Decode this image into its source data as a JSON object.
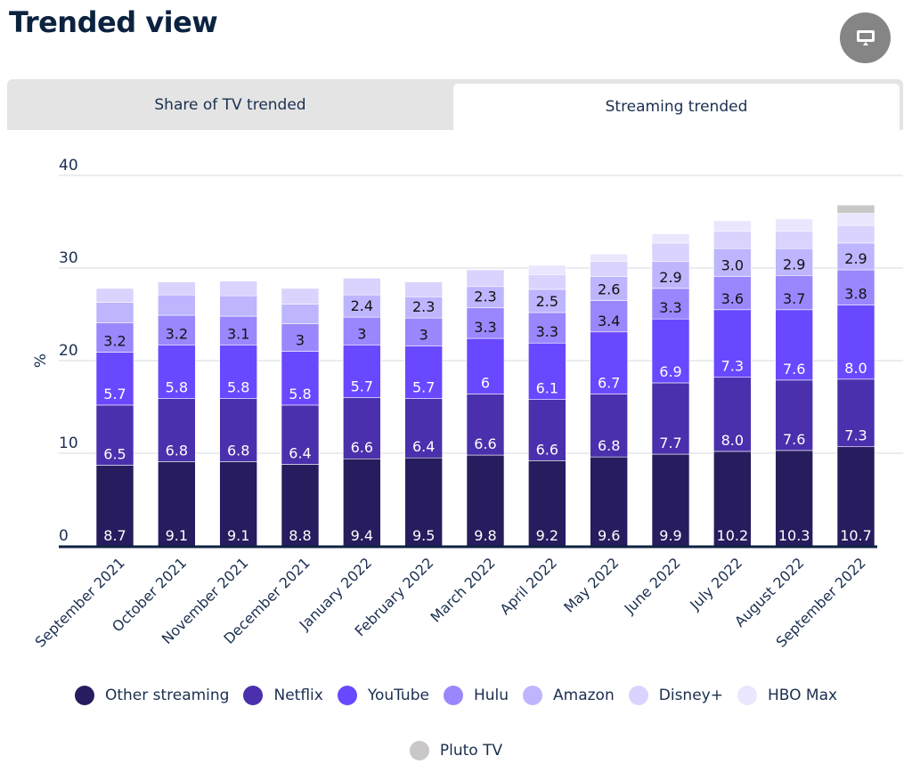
{
  "header": {
    "title": "Trended view",
    "tv_button_icon": "monitor-icon"
  },
  "tabs": [
    {
      "label": "Share of TV trended",
      "active": false
    },
    {
      "label": "Streaming trended",
      "active": true
    }
  ],
  "chart_data": {
    "type": "bar",
    "stacked": true,
    "title": "",
    "xlabel": "",
    "ylabel": "%",
    "ylim": [
      0,
      40
    ],
    "yticks": [
      0,
      10,
      20,
      30,
      40
    ],
    "grid": true,
    "legend_position": "bottom",
    "categories": [
      "September 2021",
      "October 2021",
      "November 2021",
      "December 2021",
      "January 2022",
      "February 2022",
      "March 2022",
      "April 2022",
      "May 2022",
      "June 2022",
      "July 2022",
      "August 2022",
      "September 2022"
    ],
    "series": [
      {
        "name": "Other streaming",
        "color": "#271c5e",
        "label_color": "#ffffff",
        "values": [
          8.7,
          9.1,
          9.1,
          8.8,
          9.4,
          9.5,
          9.8,
          9.2,
          9.6,
          9.9,
          10.2,
          10.3,
          10.7
        ],
        "labels": [
          "8.7",
          "9.1",
          "9.1",
          "8.8",
          "9.4",
          "9.5",
          "9.8",
          "9.2",
          "9.6",
          "9.9",
          "10.2",
          "10.3",
          "10.7"
        ]
      },
      {
        "name": "Netflix",
        "color": "#4a30ac",
        "label_color": "#ffffff",
        "values": [
          6.5,
          6.8,
          6.8,
          6.4,
          6.6,
          6.4,
          6.6,
          6.6,
          6.8,
          7.7,
          8.0,
          7.6,
          7.3
        ],
        "labels": [
          "6.5",
          "6.8",
          "6.8",
          "6.4",
          "6.6",
          "6.4",
          "6.6",
          "6.6",
          "6.8",
          "7.7",
          "8.0",
          "7.6",
          "7.3"
        ]
      },
      {
        "name": "YouTube",
        "color": "#6a48ff",
        "label_color": "#ffffff",
        "values": [
          5.7,
          5.8,
          5.8,
          5.8,
          5.7,
          5.7,
          6.0,
          6.1,
          6.7,
          6.9,
          7.3,
          7.6,
          8.0
        ],
        "labels": [
          "5.7",
          "5.8",
          "5.8",
          "5.8",
          "5.7",
          "5.7",
          "6",
          "6.1",
          "6.7",
          "6.9",
          "7.3",
          "7.6",
          "8.0"
        ]
      },
      {
        "name": "Hulu",
        "color": "#9a87fd",
        "label_color": "#111111",
        "values": [
          3.2,
          3.2,
          3.1,
          3.0,
          3.0,
          3.0,
          3.3,
          3.3,
          3.4,
          3.3,
          3.6,
          3.7,
          3.8
        ],
        "labels": [
          "3.2",
          "3.2",
          "3.1",
          "3",
          "3",
          "3",
          "3.3",
          "3.3",
          "3.4",
          "3.3",
          "3.6",
          "3.7",
          "3.8"
        ]
      },
      {
        "name": "Amazon",
        "color": "#bdb5fe",
        "label_color": "#111111",
        "values": [
          2.2,
          2.2,
          2.2,
          2.1,
          2.4,
          2.3,
          2.3,
          2.5,
          2.6,
          2.9,
          3.0,
          2.9,
          2.9
        ],
        "labels": [
          "",
          "",
          "",
          "",
          "2.4",
          "2.3",
          "2.3",
          "2.5",
          "2.6",
          "2.9",
          "3.0",
          "2.9",
          "2.9"
        ]
      },
      {
        "name": "Disney+",
        "color": "#d9d3fd",
        "label_color": "#111111",
        "values": [
          1.5,
          1.4,
          1.6,
          1.7,
          1.8,
          1.6,
          1.8,
          1.6,
          1.6,
          2.0,
          1.9,
          1.9,
          1.9
        ],
        "labels": [
          "",
          "",
          "",
          "",
          "",
          "",
          "",
          "",
          "",
          "",
          "",
          "",
          ""
        ]
      },
      {
        "name": "HBO Max",
        "color": "#e9e6fe",
        "label_color": "#111111",
        "values": [
          0,
          0,
          0,
          0,
          0,
          0,
          0,
          1.0,
          0.8,
          1.0,
          1.1,
          1.3,
          1.3
        ],
        "labels": [
          "",
          "",
          "",
          "",
          "",
          "",
          "",
          "",
          "",
          "",
          "",
          "",
          ""
        ]
      },
      {
        "name": "Pluto TV",
        "color": "#c9c7c7",
        "label_color": "#111111",
        "values": [
          0,
          0,
          0,
          0,
          0,
          0,
          0,
          0,
          0,
          0,
          0,
          0,
          0.9
        ],
        "labels": [
          "",
          "",
          "",
          "",
          "",
          "",
          "",
          "",
          "",
          "",
          "",
          "",
          ""
        ]
      }
    ]
  }
}
